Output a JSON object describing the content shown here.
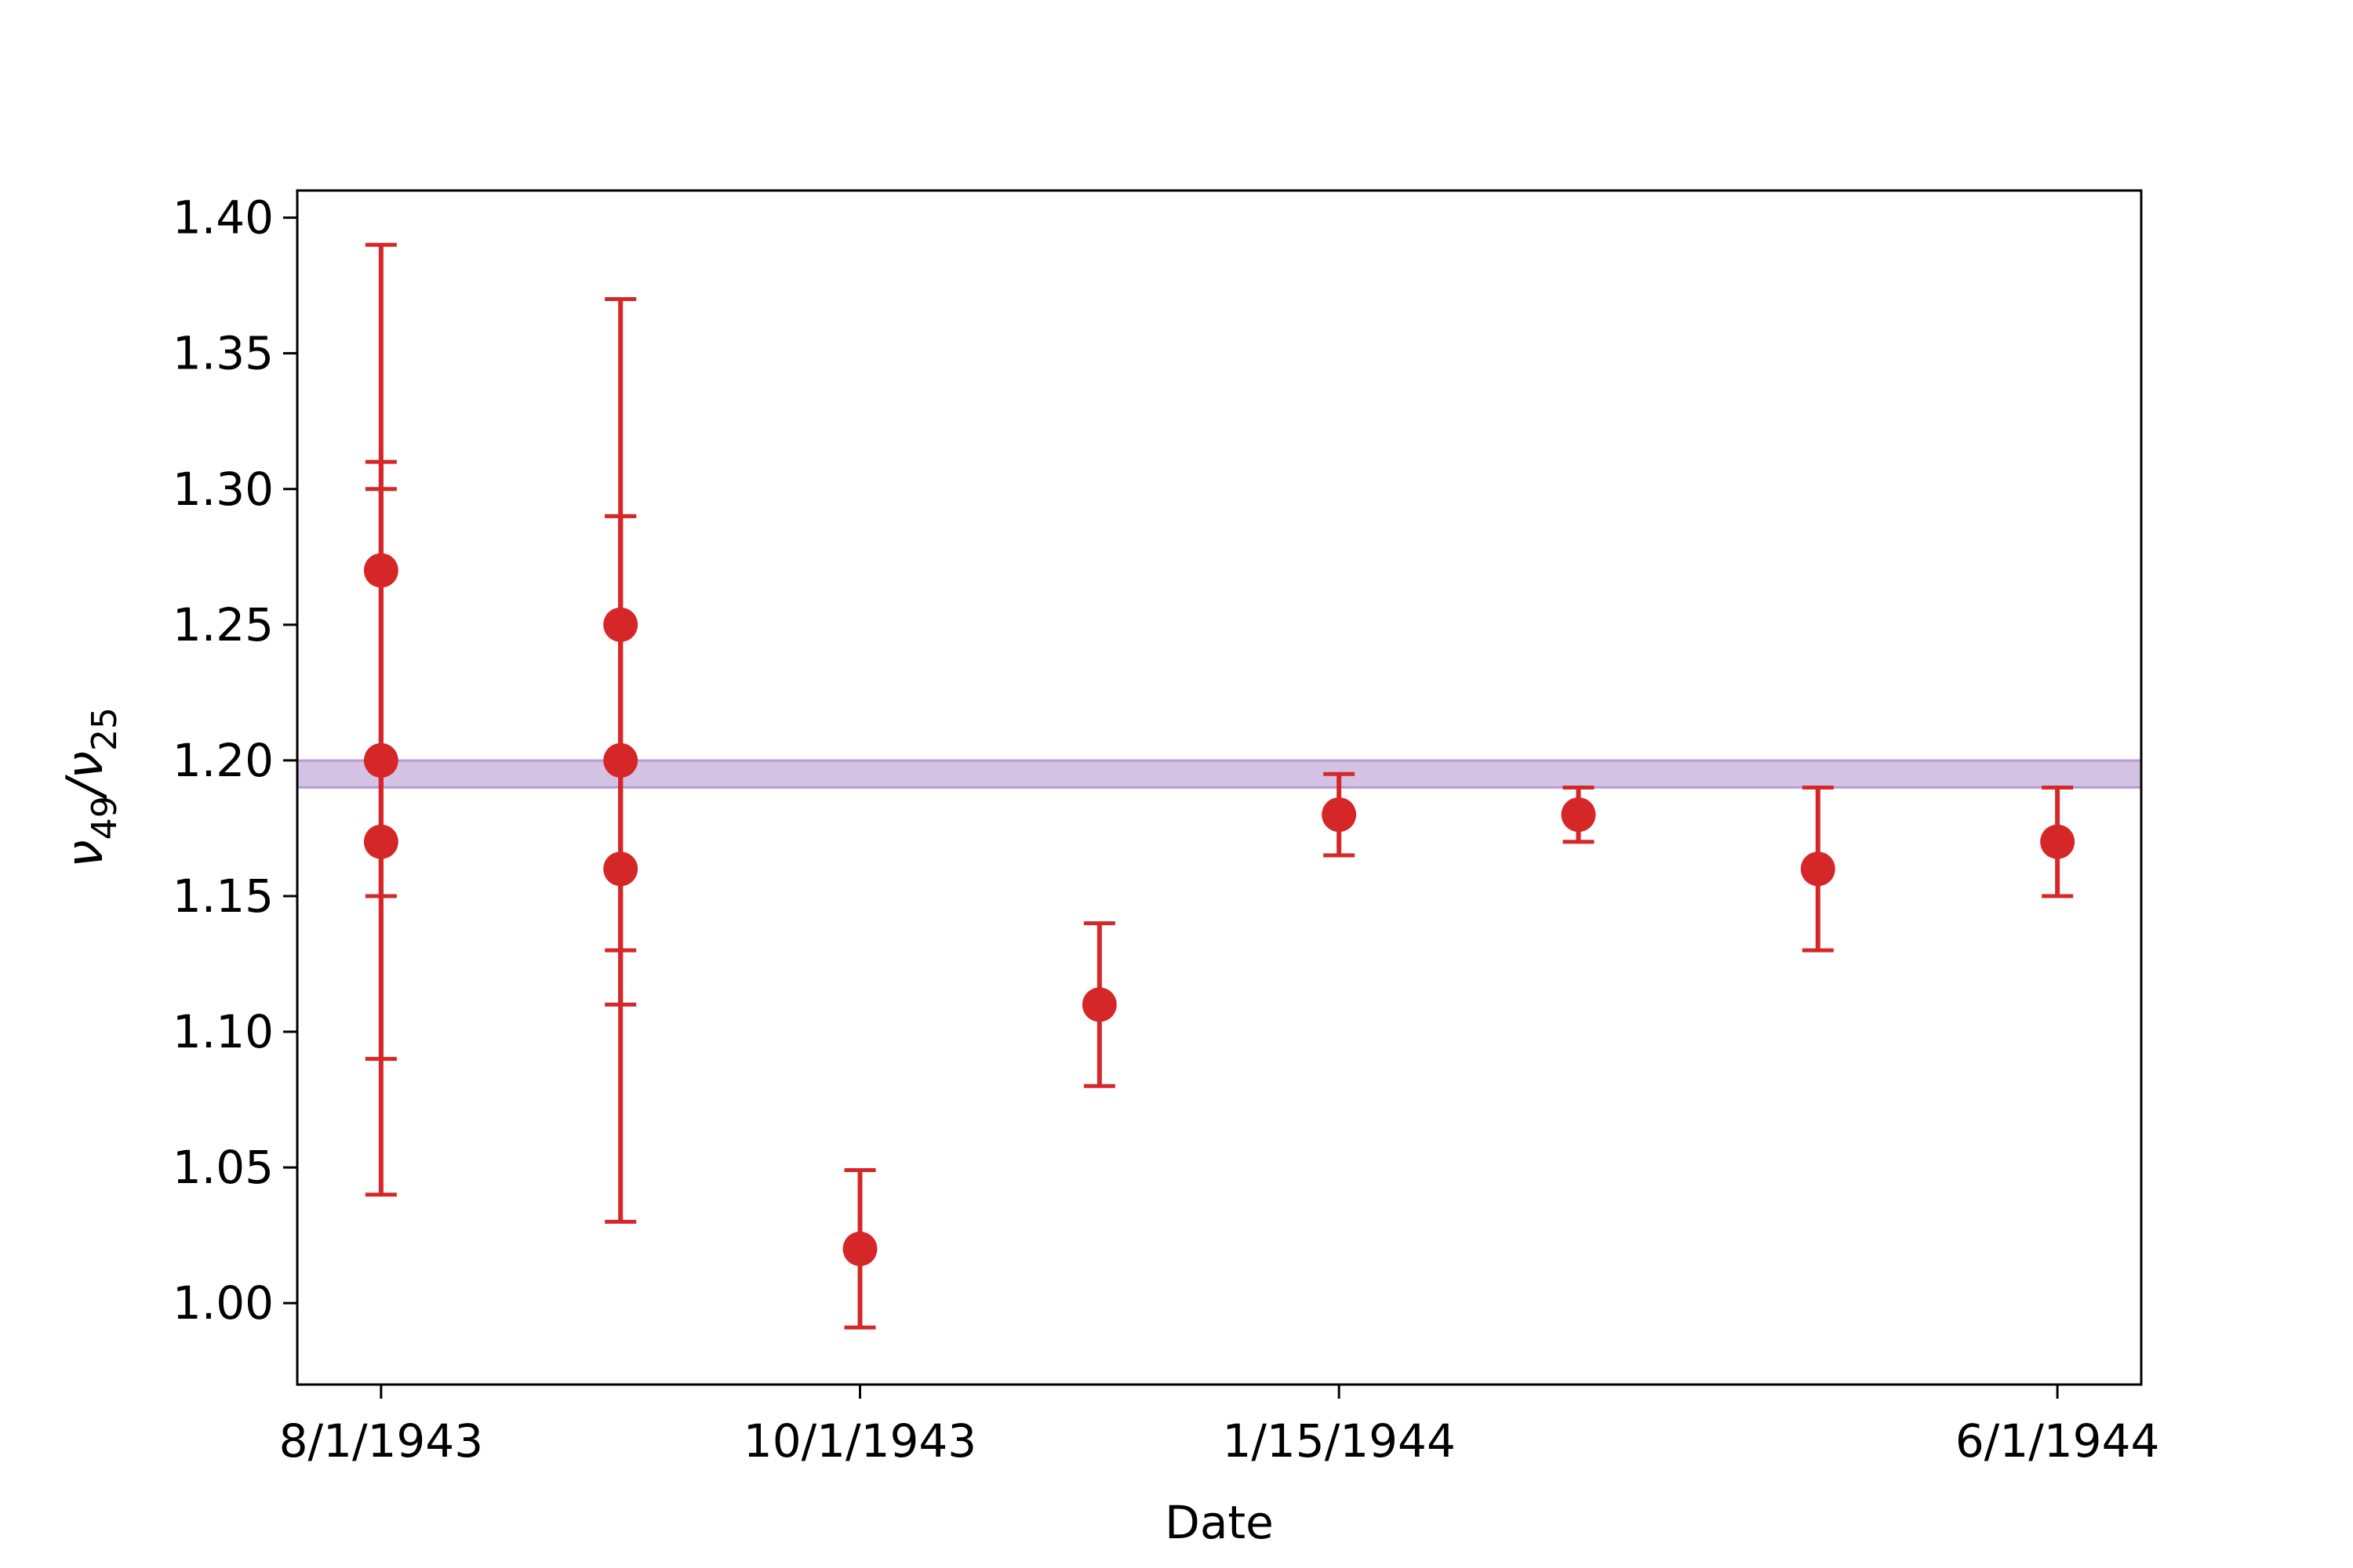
{
  "chart_data": {
    "type": "scatter",
    "title": "",
    "xlabel": "Date",
    "ylabel": {
      "main": "ν",
      "sub1": "49",
      "slash": "/",
      "main2": "ν",
      "sub2": "25"
    },
    "ylim": [
      0.97,
      1.41
    ],
    "yticks": [
      "1.00",
      "1.05",
      "1.10",
      "1.15",
      "1.20",
      "1.25",
      "1.30",
      "1.35",
      "1.40"
    ],
    "xticks": [
      "8/1/1943",
      "10/1/1943",
      "1/15/1944",
      "6/1/1944"
    ],
    "xtick_positions": [
      0,
      2,
      4,
      7
    ],
    "xlim": [
      -0.35,
      7.35
    ],
    "band": {
      "y_low": 1.19,
      "y_high": 1.2,
      "color": "#9467bd"
    },
    "marker_color": "#d62728",
    "points": [
      {
        "x": 0,
        "y": 1.27,
        "err_low": 1.15,
        "err_high": 1.39
      },
      {
        "x": 0,
        "y": 1.2,
        "err_low": 1.09,
        "err_high": 1.31
      },
      {
        "x": 0,
        "y": 1.17,
        "err_low": 1.04,
        "err_high": 1.3
      },
      {
        "x": 1,
        "y": 1.25,
        "err_low": 1.13,
        "err_high": 1.37
      },
      {
        "x": 1,
        "y": 1.2,
        "err_low": 1.11,
        "err_high": 1.29
      },
      {
        "x": 1,
        "y": 1.16,
        "err_low": 1.03,
        "err_high": 1.29
      },
      {
        "x": 2,
        "y": 1.02,
        "err_low": 0.991,
        "err_high": 1.049
      },
      {
        "x": 3,
        "y": 1.11,
        "err_low": 1.08,
        "err_high": 1.14
      },
      {
        "x": 4,
        "y": 1.18,
        "err_low": 1.165,
        "err_high": 1.195
      },
      {
        "x": 5,
        "y": 1.18,
        "err_low": 1.17,
        "err_high": 1.19
      },
      {
        "x": 6,
        "y": 1.16,
        "err_low": 1.13,
        "err_high": 1.19
      },
      {
        "x": 7,
        "y": 1.17,
        "err_low": 1.15,
        "err_high": 1.19
      }
    ]
  }
}
